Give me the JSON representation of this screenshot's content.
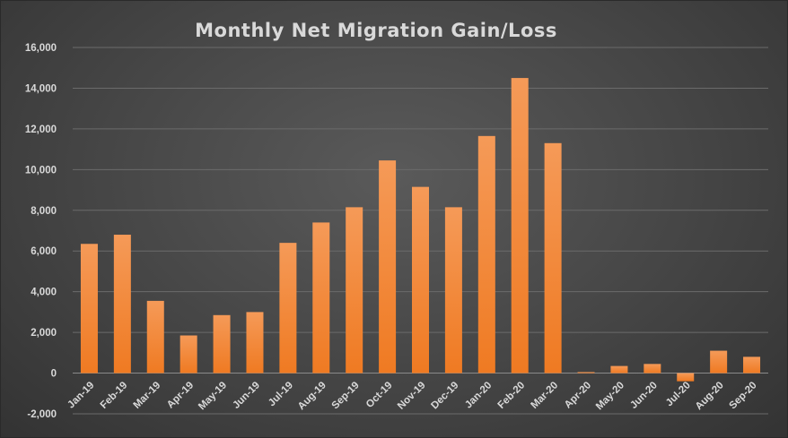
{
  "chart_data": {
    "type": "bar",
    "title": "Monthly Net Migration Gain/Loss",
    "xlabel": "",
    "ylabel": "",
    "ylim": [
      -2000,
      16000
    ],
    "yticks": [
      "-2,000",
      "0",
      "2,000",
      "4,000",
      "6,000",
      "8,000",
      "10,000",
      "12,000",
      "14,000",
      "16,000"
    ],
    "categories": [
      "Jan-19",
      "Feb-19",
      "Mar-19",
      "Apr-19",
      "May-19",
      "Jun-19",
      "Jul-19",
      "Aug-19",
      "Sep-19",
      "Oct-19",
      "Nov-19",
      "Dec-19",
      "Jan-20",
      "Feb-20",
      "Mar-20",
      "Apr-20",
      "May-20",
      "Jun-20",
      "Jul-20",
      "Aug-20",
      "Sep-20"
    ],
    "values": [
      6350,
      6800,
      3550,
      1850,
      2850,
      3000,
      6400,
      7400,
      8150,
      10450,
      9150,
      8150,
      11650,
      14500,
      11300,
      50,
      350,
      450,
      -400,
      1100,
      800
    ],
    "grid": true,
    "legend": "none",
    "colors": {
      "bar": "#f07f2c",
      "bar_light": "#f59a58",
      "text": "#d9d9d9"
    }
  }
}
